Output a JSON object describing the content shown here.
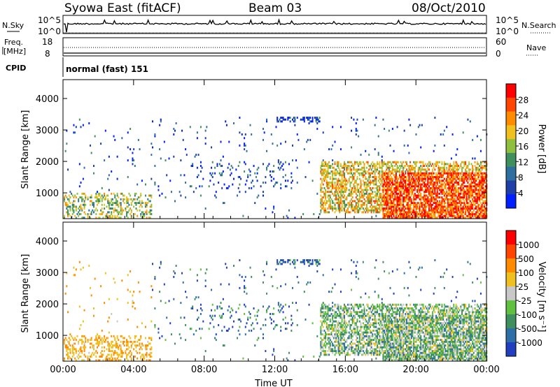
{
  "header": {
    "station": "Syowa East (fitACF)",
    "beam": "Beam 03",
    "date": "08/Oct/2010"
  },
  "status_panels": {
    "nsky_label": "N.Sky",
    "nsky_ticks": [
      "10^5",
      "10^0"
    ],
    "nsearch_label": "N.Search",
    "nsearch_ticks": [
      "10^5",
      "10^0"
    ],
    "freq_label": "Freq.",
    "freq_unit": "[MHz]",
    "freq_ticks": [
      "18",
      "8"
    ],
    "nave_label": "Nave",
    "nave_ticks": [
      "60",
      "0"
    ],
    "cpid_label": "CPID",
    "cpid_text": "normal (fast) 151"
  },
  "chart_data": [
    {
      "type": "heatmap",
      "title": "Power",
      "ylabel": "Slant Range [km]",
      "xlabel": "Time UT",
      "x_ticks": [
        "00:00",
        "04:00",
        "08:00",
        "12:00",
        "16:00",
        "20:00",
        "00:00"
      ],
      "x_range_hours": [
        0,
        24
      ],
      "y_ticks": [
        1000,
        2000,
        3000,
        4000
      ],
      "ylim": [
        180,
        4600
      ],
      "colorbar": {
        "label": "Power [dB]",
        "tick_labels": [
          "4",
          "8",
          "12",
          "16",
          "20",
          "24",
          "28"
        ],
        "range": [
          0,
          32
        ],
        "colors": [
          "#0020ff",
          "#1f3fa8",
          "#2e6fa0",
          "#3f8f5f",
          "#8fbf3f",
          "#f0c020",
          "#ff8c00",
          "#ff4500",
          "#ff0000"
        ]
      }
    },
    {
      "type": "heatmap",
      "title": "Velocity",
      "ylabel": "Slant Range [km]",
      "xlabel": "Time UT",
      "x_ticks": [
        "00:00",
        "04:00",
        "08:00",
        "12:00",
        "16:00",
        "20:00",
        "00:00"
      ],
      "x_range_hours": [
        0,
        24
      ],
      "y_ticks": [
        1000,
        2000,
        3000,
        4000
      ],
      "ylim": [
        180,
        4600
      ],
      "colorbar": {
        "label": "Velocity [m s⁻¹]",
        "tick_labels": [
          "1000",
          "500",
          "100",
          "25",
          "-25",
          "-100",
          "-500",
          "-1000"
        ],
        "colors": [
          "#2040c0",
          "#2f6fa8",
          "#3f8f5f",
          "#60c040",
          "#c8c8c8",
          "#f0c020",
          "#ff8c00",
          "#ff4500",
          "#ff0000"
        ]
      }
    }
  ]
}
